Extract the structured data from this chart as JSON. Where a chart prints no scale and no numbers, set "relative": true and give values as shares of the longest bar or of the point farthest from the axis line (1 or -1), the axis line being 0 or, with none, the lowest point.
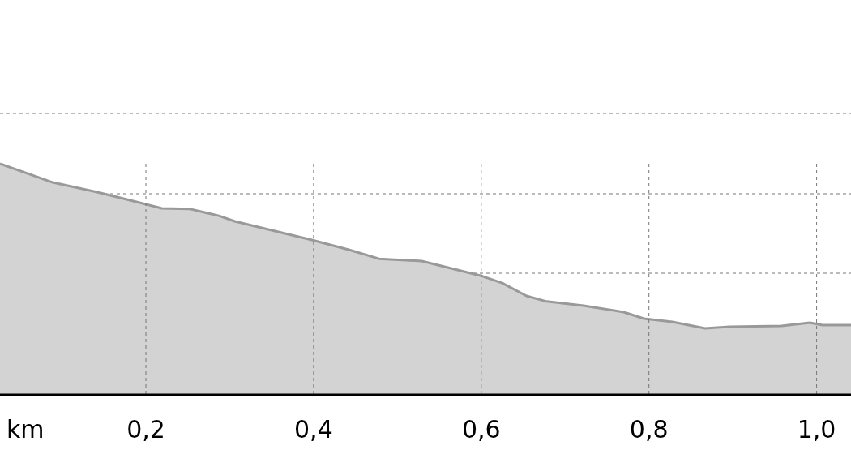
{
  "chart_data": {
    "type": "area",
    "relative": true,
    "xlabel": "km",
    "grid": true,
    "xlim": [
      0.026,
      1.041
    ],
    "xticks": [
      {
        "value": 0.2,
        "label": "0,2"
      },
      {
        "value": 0.4,
        "label": "0,4"
      },
      {
        "value": 0.6,
        "label": "0,6"
      },
      {
        "value": 0.8,
        "label": "0,8"
      },
      {
        "value": 1.0,
        "label": "1,0"
      }
    ],
    "series": [
      {
        "color": "#999999",
        "x": [
          0.026,
          0.089,
          0.142,
          0.181,
          0.219,
          0.253,
          0.287,
          0.306,
          0.398,
          0.442,
          0.478,
          0.529,
          0.599,
          0.625,
          0.654,
          0.678,
          0.722,
          0.77,
          0.794,
          0.828,
          0.867,
          0.896,
          0.958,
          0.992,
          1.007,
          1.041
        ],
        "values": [
          1.0,
          0.919,
          0.877,
          0.842,
          0.807,
          0.804,
          0.775,
          0.751,
          0.67,
          0.628,
          0.589,
          0.579,
          0.516,
          0.484,
          0.428,
          0.404,
          0.386,
          0.358,
          0.33,
          0.316,
          0.288,
          0.295,
          0.298,
          0.312,
          0.302,
          0.302
        ]
      }
    ]
  }
}
